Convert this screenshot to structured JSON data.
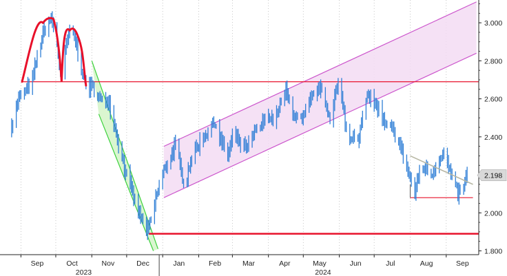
{
  "chart_data": {
    "type": "line",
    "title": "",
    "xlabel": "",
    "ylabel": "",
    "x_ticks": [
      "Sep",
      "Oct",
      "Nov",
      "Dec",
      "Jan",
      "Feb",
      "Mar",
      "Apr",
      "May",
      "Jun",
      "Jul",
      "Aug",
      "Sep"
    ],
    "x_years": [
      "2023",
      "2024"
    ],
    "y_ticks": [
      "3.000",
      "2.800",
      "2.600",
      "2.400",
      "2.200",
      "2.000",
      "1.800"
    ],
    "ylim": [
      1.78,
      3.12
    ],
    "grid": "vertical dotted",
    "last_value_label": "2.198",
    "series": [
      {
        "color": "#2f7fd6",
        "points": [
          [
            "2023-08-24",
            2.46
          ],
          [
            "2023-08-30",
            2.6
          ],
          [
            "2023-09-05",
            2.64
          ],
          [
            "2023-09-11",
            2.7
          ],
          [
            "2023-09-15",
            2.82
          ],
          [
            "2023-09-19",
            2.92
          ],
          [
            "2023-09-23",
            2.99
          ],
          [
            "2023-09-27",
            3.02
          ],
          [
            "2023-10-01",
            2.94
          ],
          [
            "2023-10-04",
            2.78
          ],
          [
            "2023-10-06",
            2.72
          ],
          [
            "2023-10-09",
            2.84
          ],
          [
            "2023-10-12",
            2.94
          ],
          [
            "2023-10-15",
            2.96
          ],
          [
            "2023-10-18",
            2.9
          ],
          [
            "2023-10-22",
            2.8
          ],
          [
            "2023-10-25",
            2.7
          ],
          [
            "2023-10-29",
            2.66
          ],
          [
            "2023-11-02",
            2.66
          ],
          [
            "2023-11-06",
            2.62
          ],
          [
            "2023-11-10",
            2.58
          ],
          [
            "2023-11-15",
            2.6
          ],
          [
            "2023-11-20",
            2.48
          ],
          [
            "2023-11-25",
            2.34
          ],
          [
            "2023-11-30",
            2.22
          ],
          [
            "2023-12-05",
            2.12
          ],
          [
            "2023-12-10",
            2.02
          ],
          [
            "2023-12-15",
            1.95
          ],
          [
            "2023-12-19",
            1.9
          ],
          [
            "2023-12-22",
            1.96
          ],
          [
            "2023-12-27",
            2.1
          ],
          [
            "2024-01-02",
            2.22
          ],
          [
            "2024-01-08",
            2.3
          ],
          [
            "2024-01-12",
            2.36
          ],
          [
            "2024-01-16",
            2.24
          ],
          [
            "2024-01-20",
            2.14
          ],
          [
            "2024-01-25",
            2.28
          ],
          [
            "2024-01-30",
            2.34
          ],
          [
            "2024-02-05",
            2.4
          ],
          [
            "2024-02-10",
            2.44
          ],
          [
            "2024-02-15",
            2.48
          ],
          [
            "2024-02-20",
            2.38
          ],
          [
            "2024-02-26",
            2.3
          ],
          [
            "2024-03-02",
            2.42
          ],
          [
            "2024-03-08",
            2.36
          ],
          [
            "2024-03-14",
            2.34
          ],
          [
            "2024-03-20",
            2.42
          ],
          [
            "2024-03-26",
            2.46
          ],
          [
            "2024-04-01",
            2.52
          ],
          [
            "2024-04-06",
            2.48
          ],
          [
            "2024-04-12",
            2.58
          ],
          [
            "2024-04-16",
            2.64
          ],
          [
            "2024-04-20",
            2.56
          ],
          [
            "2024-04-25",
            2.5
          ],
          [
            "2024-04-30",
            2.48
          ],
          [
            "2024-05-05",
            2.56
          ],
          [
            "2024-05-10",
            2.62
          ],
          [
            "2024-05-15",
            2.66
          ],
          [
            "2024-05-20",
            2.58
          ],
          [
            "2024-05-24",
            2.5
          ],
          [
            "2024-05-28",
            2.62
          ],
          [
            "2024-06-01",
            2.68
          ],
          [
            "2024-06-05",
            2.52
          ],
          [
            "2024-06-09",
            2.36
          ],
          [
            "2024-06-13",
            2.42
          ],
          [
            "2024-06-18",
            2.4
          ],
          [
            "2024-06-22",
            2.54
          ],
          [
            "2024-06-26",
            2.62
          ],
          [
            "2024-07-01",
            2.58
          ],
          [
            "2024-07-05",
            2.54
          ],
          [
            "2024-07-10",
            2.46
          ],
          [
            "2024-07-16",
            2.44
          ],
          [
            "2024-07-22",
            2.38
          ],
          [
            "2024-07-27",
            2.28
          ],
          [
            "2024-08-01",
            2.18
          ],
          [
            "2024-08-05",
            2.1
          ],
          [
            "2024-08-09",
            2.22
          ],
          [
            "2024-08-14",
            2.24
          ],
          [
            "2024-08-19",
            2.2
          ],
          [
            "2024-08-24",
            2.26
          ],
          [
            "2024-08-29",
            2.32
          ],
          [
            "2024-09-03",
            2.24
          ],
          [
            "2024-09-07",
            2.16
          ],
          [
            "2024-09-11",
            2.1
          ],
          [
            "2024-09-15",
            2.12
          ],
          [
            "2024-09-19",
            2.2
          ]
        ]
      }
    ],
    "annotations": {
      "head_and_shoulders": {
        "color": "#e8102a",
        "points": [
          [
            "2023-09-02",
            2.69
          ],
          [
            "2023-09-20",
            3.0
          ],
          [
            "2023-09-29",
            3.02
          ],
          [
            "2023-10-06",
            2.69
          ],
          [
            "2023-10-13",
            2.96
          ],
          [
            "2023-10-20",
            2.93
          ],
          [
            "2023-10-27",
            2.67
          ]
        ]
      },
      "neckline": {
        "color": "#e8102a",
        "y": 2.69,
        "x_start": "2023-09-02"
      },
      "support_line": {
        "color": "#e8102a",
        "y": 1.89,
        "x_start": "2023-12-20"
      },
      "recent_floor": {
        "color": "#e8102a",
        "y": 2.08,
        "x_start": "2024-08-01",
        "x_end": "2024-09-24"
      },
      "down_channel": {
        "color": "#3bd13b",
        "fill": "#d4f5c8",
        "upper": [
          [
            "2023-11-01",
            2.8
          ],
          [
            "2023-12-28",
            1.81
          ]
        ],
        "lower": [
          [
            "2023-11-07",
            2.52
          ],
          [
            "2023-12-24",
            1.8
          ]
        ]
      },
      "up_channel": {
        "color": "#cc55cc",
        "fill": "#f3dcf3",
        "upper": [
          [
            "2024-01-02",
            2.35
          ],
          [
            "2024-09-27",
            3.11
          ]
        ],
        "lower": [
          [
            "2024-01-02",
            2.08
          ],
          [
            "2024-09-27",
            2.84
          ]
        ]
      },
      "flag_line": {
        "color": "#b7b7a4",
        "points": [
          [
            "2024-08-01",
            2.3
          ],
          [
            "2024-09-24",
            2.15
          ]
        ]
      }
    }
  }
}
